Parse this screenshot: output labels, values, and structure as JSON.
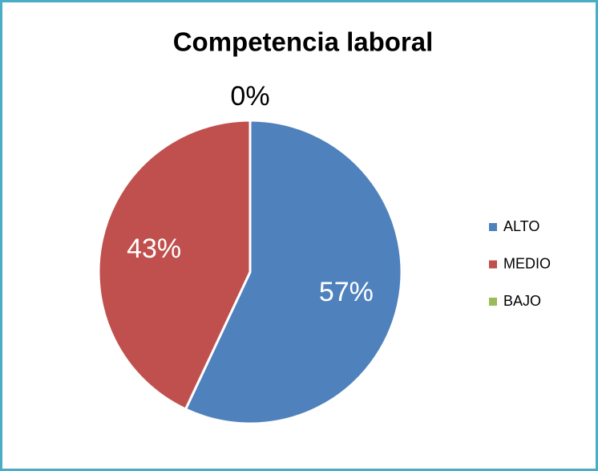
{
  "chart_data": {
    "type": "pie",
    "title": "Competencia laboral",
    "categories": [
      "ALTO",
      "MEDIO",
      "BAJO"
    ],
    "values": [
      57,
      43,
      0
    ],
    "value_labels": [
      "57%",
      "43%",
      "0%"
    ],
    "colors": [
      "#4f81bd",
      "#c0504d",
      "#9bbb59"
    ],
    "legend": "right"
  }
}
